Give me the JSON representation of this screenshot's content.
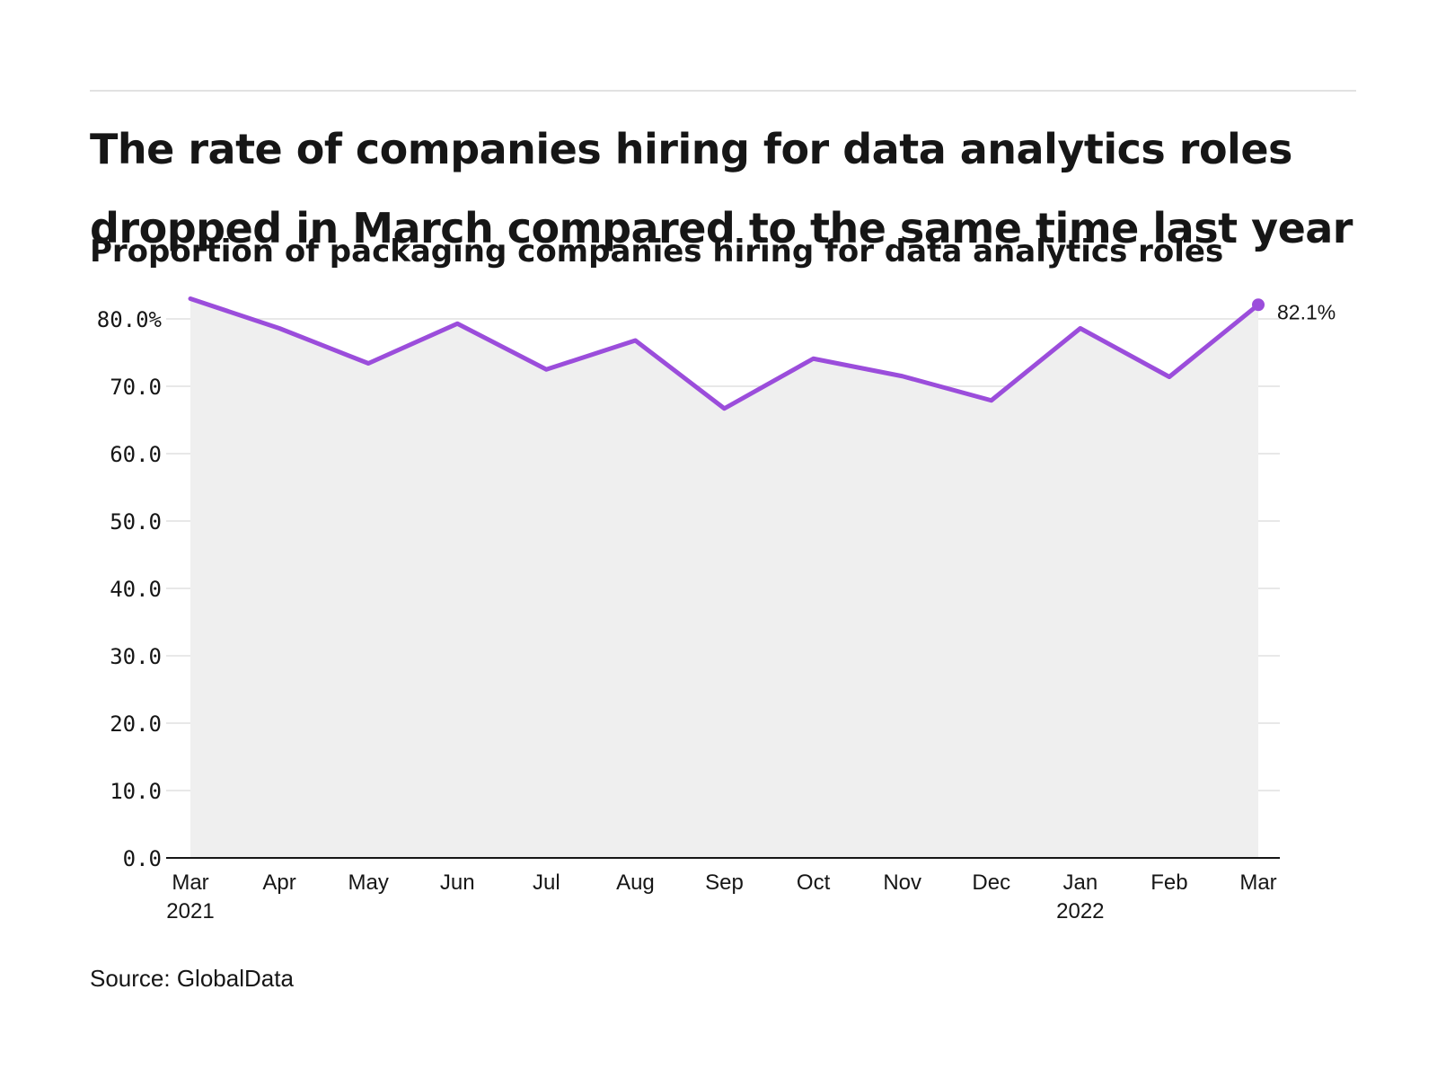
{
  "header": {
    "title": "The rate of companies hiring for data analytics roles dropped in March compared to the same time last year",
    "subtitle": "Proportion of packaging companies hiring for data analytics roles"
  },
  "footer": {
    "source": "Source: GlobalData"
  },
  "colors": {
    "line": "#9b4ddb",
    "area": "#efefef",
    "grid": "#e0e0e0",
    "axis": "#161616"
  },
  "chart_data": {
    "type": "line",
    "title": "The rate of companies hiring for data analytics roles dropped in March compared to the same time last year",
    "subtitle": "Proportion of packaging companies hiring for data analytics roles",
    "categories": [
      "Mar",
      "Apr",
      "May",
      "Jun",
      "Jul",
      "Aug",
      "Sep",
      "Oct",
      "Nov",
      "Dec",
      "Jan",
      "Feb",
      "Mar"
    ],
    "category_years": [
      "2021",
      "",
      "",
      "",
      "",
      "",
      "",
      "",
      "",
      "",
      "2022",
      "",
      ""
    ],
    "series": [
      {
        "values": [
          83.0,
          78.6,
          73.4,
          79.3,
          72.5,
          76.8,
          66.7,
          74.1,
          71.5,
          67.9,
          78.6,
          71.4,
          82.1
        ]
      }
    ],
    "end_label": "82.1%",
    "ylim": [
      0,
      80
    ],
    "yticks": [
      0,
      10,
      20,
      30,
      40,
      50,
      60,
      70,
      80
    ],
    "ytick_labels": [
      "0.0",
      "10.0",
      "20.0",
      "30.0",
      "40.0",
      "50.0",
      "60.0",
      "70.0",
      "80.0%"
    ],
    "xlabel": "",
    "ylabel": "",
    "grid": true,
    "area_fill": true,
    "legend": "none"
  }
}
